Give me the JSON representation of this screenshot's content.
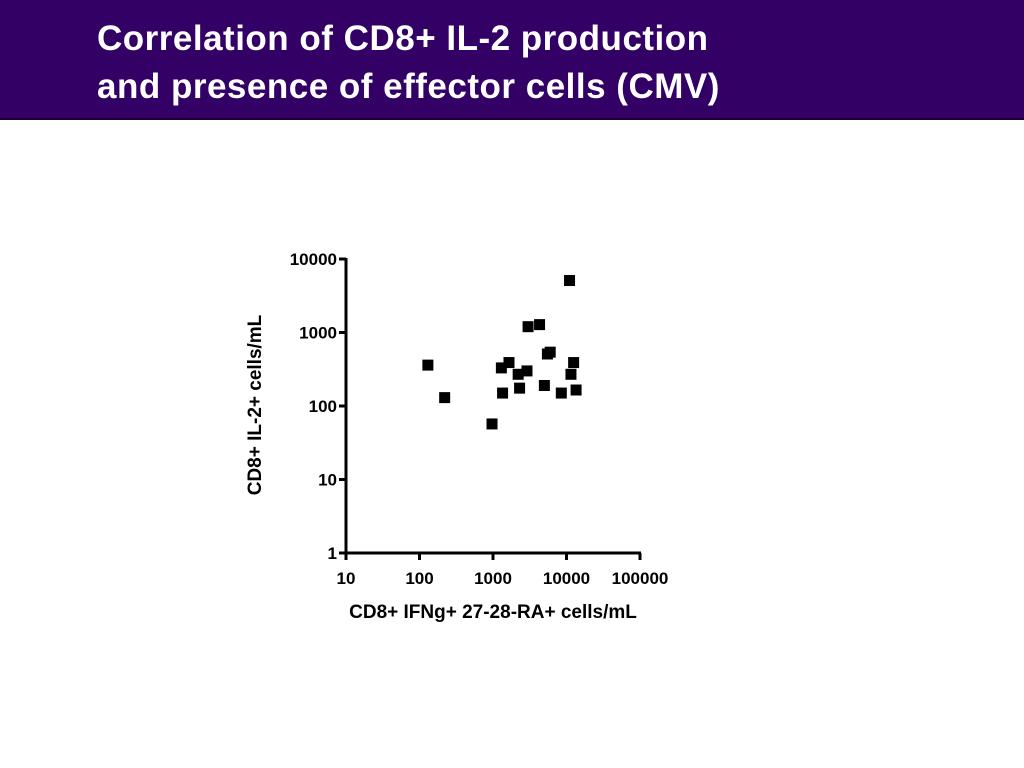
{
  "slide": {
    "title_line1": "Correlation of CD8+ IL-2 production",
    "title_line2": "and presence of effector cells (CMV)",
    "title_bg_color": "#330066",
    "title_text_color": "#ffffff"
  },
  "chart_data": {
    "type": "scatter",
    "title": "",
    "xlabel": "CD8+ IFNg+ 27-28-RA+ cells/mL",
    "ylabel": "CD8+ IL-2+ cells/mL",
    "xscale": "log",
    "yscale": "log",
    "xlim": [
      10,
      100000
    ],
    "ylim": [
      1,
      10000
    ],
    "x_ticks": [
      10,
      100,
      1000,
      10000,
      100000
    ],
    "x_tick_labels": [
      "10",
      "100",
      "1000",
      "10000",
      "100000"
    ],
    "y_ticks": [
      1,
      10,
      100,
      1000,
      10000
    ],
    "y_tick_labels": [
      "1",
      "10",
      "100",
      "1000",
      "10000"
    ],
    "grid": false,
    "legend": "none",
    "marker": "square",
    "marker_color": "#000000",
    "series": [
      {
        "points": [
          {
            "x": 130,
            "y": 360
          },
          {
            "x": 220,
            "y": 130
          },
          {
            "x": 970,
            "y": 57
          },
          {
            "x": 1300,
            "y": 330
          },
          {
            "x": 1350,
            "y": 150
          },
          {
            "x": 1650,
            "y": 390
          },
          {
            "x": 2200,
            "y": 270
          },
          {
            "x": 2300,
            "y": 175
          },
          {
            "x": 2900,
            "y": 300
          },
          {
            "x": 3000,
            "y": 1200
          },
          {
            "x": 4300,
            "y": 1280
          },
          {
            "x": 5000,
            "y": 190
          },
          {
            "x": 5500,
            "y": 510
          },
          {
            "x": 6000,
            "y": 540
          },
          {
            "x": 8500,
            "y": 150
          },
          {
            "x": 11000,
            "y": 5100
          },
          {
            "x": 11500,
            "y": 270
          },
          {
            "x": 12500,
            "y": 390
          },
          {
            "x": 13500,
            "y": 165
          }
        ]
      }
    ]
  }
}
